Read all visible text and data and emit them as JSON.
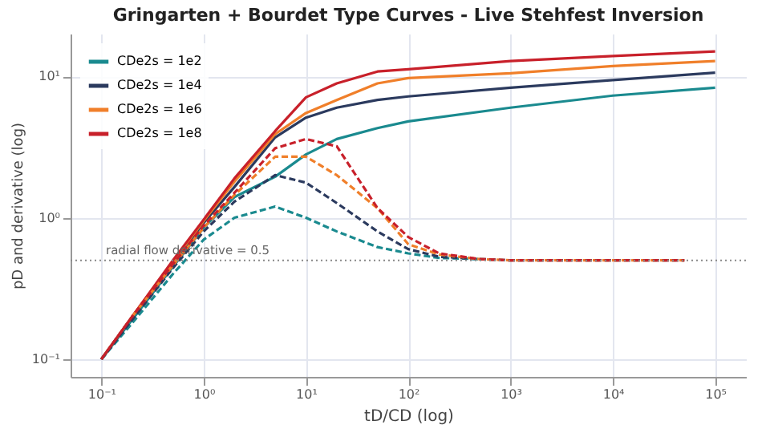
{
  "chart_data": {
    "type": "line",
    "title": "Gringarten + Bourdet Type Curves - Live Stehfest Inversion",
    "xlabel": "tD/CD (log)",
    "ylabel": "pD and derivative (log)",
    "log": "xy",
    "grid": true,
    "legend": "top left",
    "xlim": [
      0.05,
      200000
    ],
    "ylim": [
      0.075,
      20
    ],
    "xticks": [
      {
        "value": 0.1,
        "label": "10⁻¹"
      },
      {
        "value": 1,
        "label": "10⁰"
      },
      {
        "value": 10,
        "label": "10¹"
      },
      {
        "value": 100,
        "label": "10²"
      },
      {
        "value": 1000,
        "label": "10³"
      },
      {
        "value": 10000,
        "label": "10⁴"
      },
      {
        "value": 100000,
        "label": "10⁵"
      }
    ],
    "yticks": [
      {
        "value": 0.1,
        "label": "10⁻¹"
      },
      {
        "value": 1,
        "label": "10⁰"
      },
      {
        "value": 10,
        "label": "10¹"
      }
    ],
    "ref_lines": [
      {
        "axis": "y",
        "value": 0.5,
        "label": "radial flow derivative = 0.5",
        "color": "#888888",
        "line_style": "dotted"
      }
    ],
    "series": [
      {
        "name": "CDe2s = 1e2",
        "color": "#1a8a8f",
        "line_style": "solid",
        "x": [
          0.1,
          0.2,
          0.5,
          1,
          2,
          5,
          10,
          20,
          50,
          100,
          1000,
          10000,
          100000
        ],
        "values": [
          0.1,
          0.19,
          0.45,
          0.85,
          1.4,
          1.95,
          2.8,
          3.6,
          4.3,
          4.8,
          6.0,
          7.3,
          8.3
        ]
      },
      {
        "name": "CDe2s = 1e4",
        "color": "#2b3a5e",
        "line_style": "solid",
        "x": [
          0.1,
          0.2,
          0.5,
          1,
          2,
          5,
          10,
          20,
          50,
          100,
          1000,
          10000,
          100000
        ],
        "values": [
          0.1,
          0.2,
          0.48,
          0.92,
          1.65,
          3.7,
          5.1,
          6.0,
          6.8,
          7.2,
          8.3,
          9.4,
          10.6
        ]
      },
      {
        "name": "CDe2s = 1e6",
        "color": "#f07f2a",
        "line_style": "solid",
        "x": [
          0.1,
          0.2,
          0.5,
          1,
          2,
          5,
          10,
          20,
          50,
          100,
          1000,
          10000,
          100000
        ],
        "values": [
          0.1,
          0.2,
          0.49,
          0.95,
          1.8,
          3.9,
          5.5,
          6.8,
          8.9,
          9.7,
          10.5,
          11.8,
          12.8
        ]
      },
      {
        "name": "CDe2s = 1e8",
        "color": "#c8202a",
        "line_style": "solid",
        "x": [
          0.1,
          0.2,
          0.5,
          1,
          2,
          5,
          10,
          20,
          50,
          100,
          1000,
          10000,
          100000
        ],
        "values": [
          0.1,
          0.2,
          0.5,
          0.97,
          1.9,
          4.1,
          7.1,
          8.9,
          10.8,
          11.2,
          12.8,
          13.9,
          15
        ]
      },
      {
        "color": "#1a8a8f",
        "line_style": "dashed",
        "x": [
          0.1,
          0.2,
          0.5,
          1,
          2,
          5,
          10,
          20,
          50,
          100,
          200,
          500
        ],
        "values": [
          0.1,
          0.18,
          0.4,
          0.7,
          1.0,
          1.2,
          1.0,
          0.8,
          0.62,
          0.56,
          0.52,
          0.51
        ]
      },
      {
        "color": "#2b3a5e",
        "line_style": "dashed",
        "x": [
          0.1,
          0.2,
          0.5,
          1,
          2,
          5,
          10,
          20,
          50,
          100,
          200,
          500,
          1000,
          10000,
          50000
        ],
        "values": [
          0.1,
          0.19,
          0.44,
          0.8,
          1.3,
          2.0,
          1.77,
          1.27,
          0.8,
          0.6,
          0.53,
          0.51,
          0.5,
          0.5,
          0.5
        ]
      },
      {
        "color": "#f07f2a",
        "line_style": "dashed",
        "x": [
          0.2,
          0.5,
          1,
          2,
          5,
          10,
          20,
          50,
          100,
          200,
          500,
          1000,
          10000,
          50000
        ],
        "values": [
          0.2,
          0.46,
          0.85,
          1.45,
          2.7,
          2.7,
          2.0,
          1.17,
          0.65,
          0.55,
          0.51,
          0.5,
          0.5,
          0.5
        ]
      },
      {
        "color": "#c8202a",
        "line_style": "dashed",
        "x": [
          0.1,
          0.2,
          0.5,
          1,
          2,
          5,
          10,
          20,
          50,
          100,
          200,
          500,
          1000,
          10000,
          50000
        ],
        "values": [
          0.1,
          0.2,
          0.47,
          0.88,
          1.5,
          3.1,
          3.6,
          3.2,
          1.17,
          0.73,
          0.56,
          0.51,
          0.5,
          0.5,
          0.5
        ]
      }
    ]
  }
}
